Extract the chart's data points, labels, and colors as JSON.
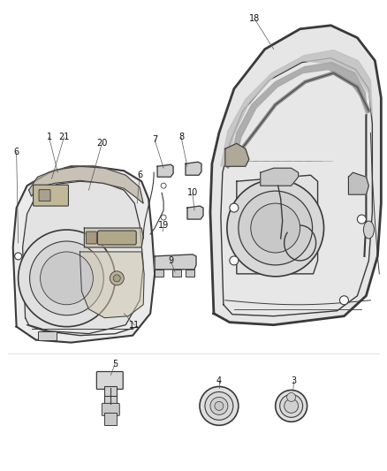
{
  "background_color": "#ffffff",
  "line_color": "#3a3a3a",
  "fig_width": 4.38,
  "fig_height": 5.33,
  "dpi": 100,
  "label_fs": 7,
  "leader_lw": 0.5,
  "leader_color": "#555555"
}
